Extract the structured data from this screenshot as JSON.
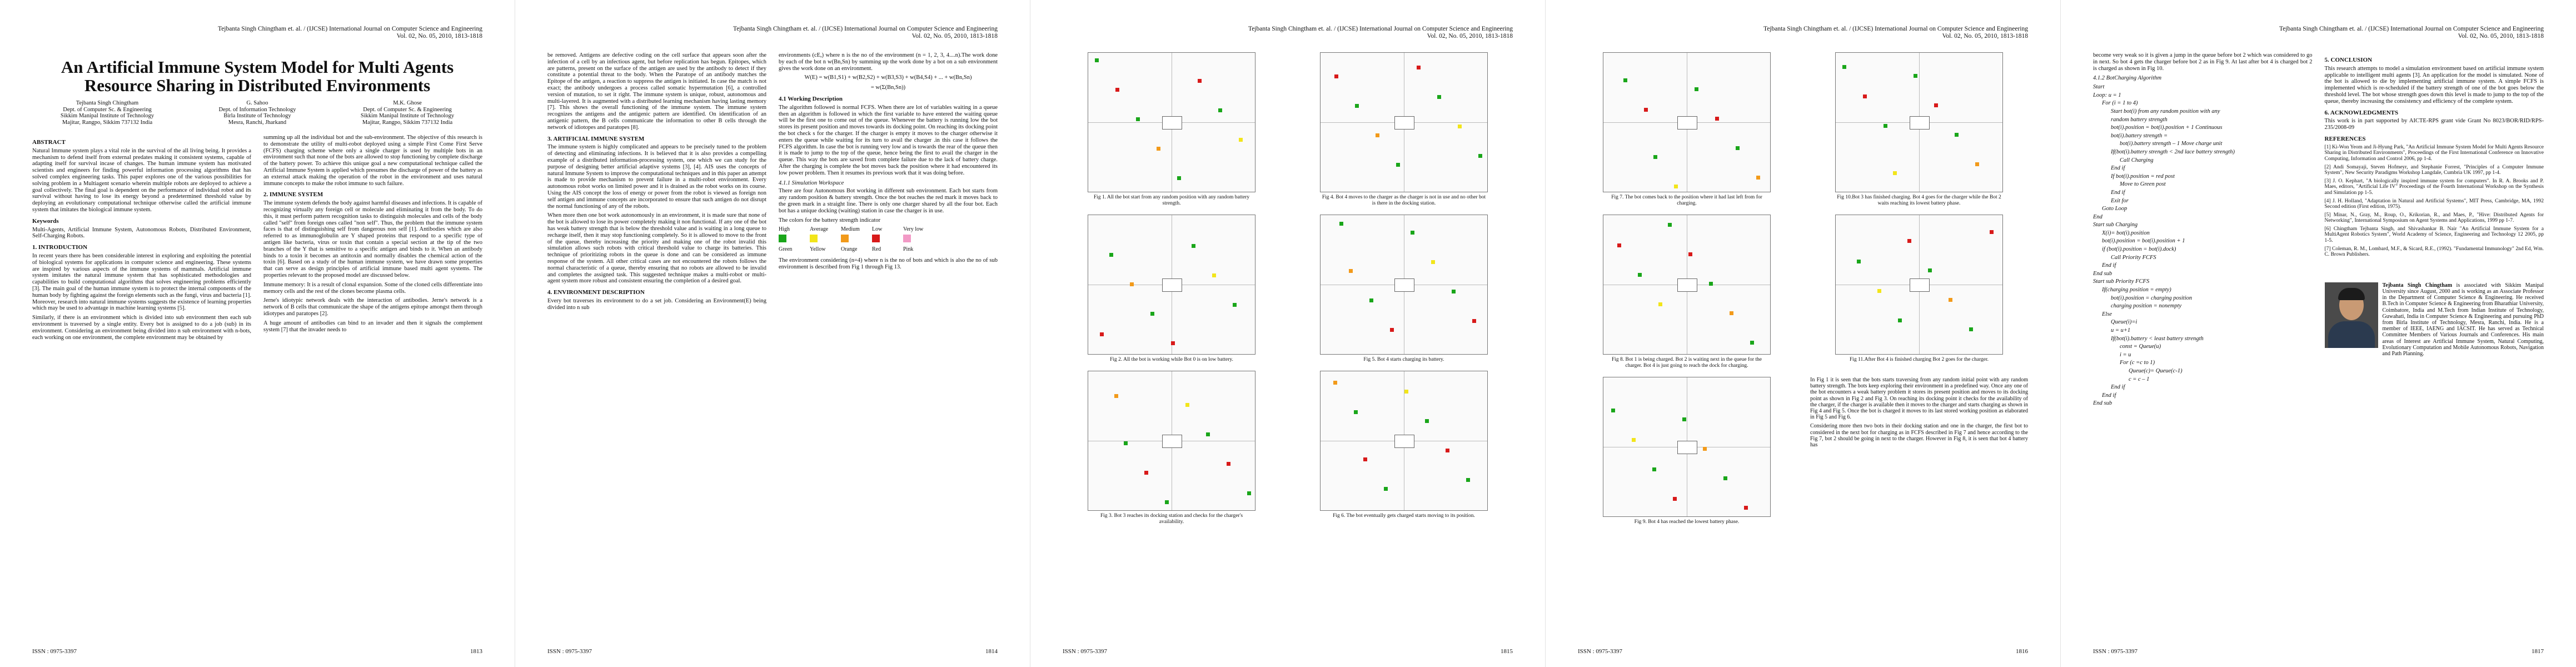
{
  "journal_header": "Tejbanta Singh Chingtham et. al. / (IJCSE) International Journal on Computer Science and Engineering",
  "volume_line": "Vol. 02, No. 05, 2010, 1813-1818",
  "issn": "ISSN : 0975-3397",
  "page_numbers": [
    "1813",
    "1814",
    "1815",
    "1816",
    "1817"
  ],
  "title": "An Artificial Immune System Model for Multi Agents Resource Sharing in Distributed Environments",
  "authors": [
    {
      "name": "Tejbanta Singh Chingtham",
      "dept": "Dept. of Computer Sc. & Engineering",
      "org": "Sikkim Manipal Institute of Technology",
      "place": "Majitar, Rangpo, Sikkim 737132 India"
    },
    {
      "name": "G. Sahoo",
      "dept": "Dept. of Information Technology",
      "org": "Birla Institute of Technology",
      "place": "Mesra, Ranchi, Jharkand"
    },
    {
      "name": "M.K. Ghose",
      "dept": "Dept. of Computer Sc. & Engineering",
      "org": "Sikkim Manipal Institute of Technology",
      "place": "Majitar, Rangpo, Sikkim 737132 India"
    }
  ],
  "p1": {
    "abstract_h": "ABSTRACT",
    "abstract": "Natural Immune system plays a vital role in the survival of the all living being. It provides a mechanism to defend itself from external predates making it consistent systems, capable of adapting itself for survival incase of changes. The human immune system has motivated scientists and engineers for finding powerful information processing algorithms that has solved complex engineering tasks. This paper explores one of the various possibilities for solving problem in a Multiagent scenario wherein multiple robots are deployed to achieve a goal collectively. The final goal is dependent on the performance of individual robot and its survival without having to lose its energy beyond a predetermined threshold value by deploying an evolutionary computational technique otherwise called the artificial immune system that imitates the biological immune system.",
    "keywords_h": "Keywords",
    "keywords": "Multi-Agents, Artificial Immune System, Autonomous Robots, Distributed Environment, Self-Charging Robots.",
    "intro_h": "1. INTRODUCTION",
    "intro_1": "In recent years there has been considerable interest in exploring and exploiting the potential of biological systems for applications in computer science and engineering. These systems are inspired by various aspects of the immune systems of mammals. Artificial immune system imitates the natural immune system that has sophisticated methodologies and capabilities to build computational algorithms that solves engineering problems efficiently [3]. The main goal of the human immune system is to protect the internal components of the human body by fighting against the foreign elements such as the fungi, virus and bacteria [1]. Moreover, research into natural immune systems suggests the existence of learning properties which may be used to advantage in machine learning systems [5].",
    "intro_2": "Similarly, if there is an environment which is divided into sub environment then each sub environment is traversed by a single entity. Every bot is assigned to do a job (sub) in its environment. Considering an environment being divided into n sub environment with n-bots, each working on one environment, the complete environment may be obtained by",
    "col2_1": "summing up all the individual bot and the sub-environment. The objective of this research is to demonstrate the utility of multi-robot deployed using a simple First Come First Serve (FCFS) charging scheme where only a single charger is used by multiple bots in an environment such that none of the bots are allowed to stop functioning by complete discharge of the battery power. To achieve this unique goal a new computational technique called the Artificial Immune System is applied which presumes the discharge of power of the battery as an external attack making the operation of the robot in the environment and uses natural immune concepts to make the robot immune to such failure.",
    "sec2_h": "2. IMMUNE SYSTEM",
    "sec2_1": "The immune system defends the body against harmful diseases and infections. It is capable of recognizing virtually any foreign cell or molecule and eliminating it from the body. To do this, it must perform pattern recognition tasks to distinguish molecules and cells of the body called \"self\" from foreign ones called \"non self\". Thus, the problem that the immune system faces is that of distinguishing self from dangerous non self [1]. Antibodies which are also referred to as immunoglobulin are Y shaped proteins that respond to a specific type of antigen like bacteria, virus or toxin that contain a special section at the tip of the two branches of the Y that is sensitive to a specific antigen and binds to it. When an antibody binds to a toxin it becomes an antitoxin and normally disables the chemical action of the toxin [6]. Based on a study of the human immune system, we have drawn some properties that can serve as design principles of artificial immune based multi agent systems. The properties relevant to the proposed model are discussed below.",
    "sec2_2": "Immune memory: It is a result of clonal expansion. Some of the cloned cells differentiate into memory cells and the rest of the clones become plasma cells.",
    "sec2_3": "Jerne's idiotypic network deals with the interaction of antibodies. Jerne's network is a network of B cells that communicate the shape of the antigens epitope amongst them through idiotypes and paratopes [2].",
    "sec2_4": "A huge amount of antibodies can bind to an invader and then it signals the complement system [7] that the invader needs to"
  },
  "p2": {
    "c1_1": "be removed. Antigens are defective coding on the cell surface that appears soon after the infection of a cell by an infectious agent, but before replication has begun. Epitopes, which are patterns, present on the surface of the antigen are used by the antibody to detect if they constitute a potential threat to the body. When the Paratope of an antibody matches the Epitope of the antigen, a reaction to suppress the antigen is initiated. In case the match is not exact; the antibody undergoes a process called somatic hypermutation [6], a controlled version of mutation, to set it right. The immune system is unique, robust, autonomous and multi-layered. It is augmented with a distributed learning mechanism having lasting memory [7]. This shows the overall functioning of the immune system. The immune system recognizes the antigens and the antigenic pattern are identified. On identification of an antigenic pattern, the B cells communicate the information to other B cells through the network of idiotopes and paratopes [8].",
    "sec3_h": "3. ARTIFICIAL IMMUNE SYSTEM",
    "sec3_1": "The immune system is highly complicated and appears to be precisely tuned to the problem of detecting and eliminating infections. It is believed that it is also provides a compelling example of a distributed information-processing system, one which we can study for the purpose of designing better artificial adaptive systems [3], [4]. AIS uses the concepts of natural Immune System to improve the computational techniques and in this paper an attempt is made to provide mechanism to prevent failure in a multi-robot environment. Every autonomous robot works on limited power and it is drained as the robot works on its course. Using the AIS concept the loss of energy or power from the robot is viewed as foreign non self antigen and immune concepts are incorporated to ensure that such antigen do not disrupt the normal functioning of any of the robots.",
    "sec3_2": "When more then one bot work autonomously in an environment, it is made sure that none of the bot is allowed to lose its power completely making it non functional. If any one of the bot has weak battery strength that is below the threshold value and is waiting in a long queue to recharge itself, then it may stop functioning completely. So it is allowed to move to the front of the queue, thereby increasing the priority and making one of the robot invalid this simulation allows such robots with critical threshold value to charge its batteries. This technique of prioritizing robots in the queue is done and can be considered as immune response of the system. All other critical cases are not encountered the robots follows the normal characteristic of a queue, thereby ensuring that no robots are allowed to be invalid and completes the assigned task. This suggested technique makes a multi-robot or multi-agent system more robust and consistent ensuring the completion of a desired goal.",
    "sec4_h": "4. ENVIRONMENT DESCRIPTION",
    "sec4_1": "Every bot traverses its environment to do a set job. Considering an Environment(E) being divided into n sub",
    "c2_1": "environments (cE,) where n is the no of the environment (n = 1, 2, 3, 4....n).The work done by each of the bot n w(Bn,Sn) by summing up the work done by a bot on a sub environment gives the work done on an environment.",
    "eq1": "W(E) = w(B1,S1) + w(B2,S2) + w(B3,S3) + w(B4,S4) + ... + w(Bn,Sn)",
    "eq2": "= w(Σ(Bn,Sn))",
    "sec41_h": "4.1 Working Description",
    "sec41_1": "The algorithm followed is normal FCFS. When there are lot of variables waiting in a queue then an algorithm is followed in which the first variable to have entered the waiting queue will be the first one to come out of the queue. Whenever the battery is running low the bot stores its present position and moves towards its docking point. On reaching its docking point the bot check s for the charger. If the charger is empty it moves to the charger otherwise it enters the queue while waiting for its turn to avail the charger .in this case it follows the FCFS algorithm. In case the bot is running very low and is towards the rear of the queue then it is made to jump to the top of the queue, hence being the first to avail the charger in the queue. This way the bots are saved from complete failure due to the lack of battery charge. After the charging is complete the bot moves back the position where it had encountered its low power problem. Then it resumes its previous work that it was doing before.",
    "sec411_h": "4.1.1  Simulation Workspace",
    "sec411_1": "There are four Autonomous Bot working in different sub environment. Each bot starts from any random position & battery strength. Once the bot reaches the red mark it moves back to the green mark in a straight line. There is only one charger shared by all the four bot. Each bot has a unique docking (waiting) station in case the charger is in use.",
    "legend_intro": "The colors for the battery strength indicator",
    "legend": [
      {
        "label": "High",
        "color": "#1aa61a",
        "name": "Green"
      },
      {
        "label": "Average",
        "color": "#f2e51a",
        "name": "Yellow"
      },
      {
        "label": "Medium",
        "color": "#f29a1a",
        "name": "Orange"
      },
      {
        "label": "Low",
        "color": "#d81a1a",
        "name": "Red"
      },
      {
        "label": "Very low",
        "color": "#f29ac6",
        "name": "Pink"
      }
    ],
    "c2_2": "The environment considering (n=4) where n is the no of bots and which is also the no of sub environment is described from Fig 1 through Fig 13."
  },
  "p3": {
    "captions": [
      "Fig 1. All the bot start from any random position with any random battery strength.",
      "Fig 4. Bot 4 moves to the charger as the charger is not in use and no other bot is there in the docking station.",
      "Fig 2. All the bot is working while Bot 0 is on low battery.",
      "Fig 5. Bot 4 starts charging its battery.",
      "Fig 3. Bot 3 reaches its docking station and checks for the charger's availability.",
      "Fig 6. The bot eventually gets charged starts moving to its position."
    ]
  },
  "p4": {
    "captions": [
      "Fig 7. The bot comes back to the position where it had last left from for charging.",
      "Fig 10.Bot 3 has finished charging. Bot 4 goes for the charger while the Bot 2 waits reaching its lowest battery phase.",
      "Fig 8. Bot 1 is being charged. Bot 2 is waiting next in the queue for the charger. Bot 4 is just going to reach the dock for charging.",
      "Fig 11.After Bot 4 is finished charging Bot 2 goes for the charger.",
      "Fig 9. Bot 4 has reached the lowest battery phase."
    ],
    "c_1": "In Fig 1 it is seen that the bots starts traversing from any random initial point with any random battery strength. The bots keep exploring their environment in a predefined way. Once any one of the bot encounters a weak battery problem it stores its present position and moves to its docking point as shown in Fig 2 and Fig 3. On reaching its docking point it checks for the availability of the charger, if the charger is available then it moves to the charger and starts charging as shown in Fig 4 and Fig 5. Once the bot is charged it moves to its last stored working position as elaborated in Fig 5 and Fig 6.",
    "c_2": "Considering more then two bots in their docking station and one in the charger, the first bot to considered in the next bot for charging as in FCFS described in Fig 7 and hence according to the Fig 7, bot 2 should be going in next to the charger. However in Fig 8, it is seen that bot 4 battery has"
  },
  "p5": {
    "c1_1": "become very weak so it is given a jump in the queue before bot 2 which was considered to go in next. So bot 4 gets the charger before bot 2 as in Fig 9. At last after bot 4 is charged bot 2 is charged as shown in Fig 10.",
    "algo_h": "4.1.2  BotCharging Algorithm",
    "algo": [
      "Start",
      "Loop: u = 1",
      "For (i = 1 to 4)",
      "Start bot(i) from any random position with any",
      "random battery strength",
      "bot(i).position = bot(i).position + 1 Continuous",
      "bot(i).battery strength =",
      "bot(i).battery strength – 1 Move charge unit",
      "If(bot(i).battery strength < 2nd lace battery strength)",
      "Call Charging",
      "End if",
      "If bot(i).position = red post",
      "Move to Green post",
      "End if",
      "Exit for",
      "Goto Loop",
      "End",
      "Start sub Charging",
      "X(i)= bot(i).position",
      "bot(i).position = bot(i).position + 1",
      "if (bot(i).position = bot(i).dock)",
      "Call Priority FCFS",
      "End if",
      "End sub",
      "Start sub Priority FCFS",
      "If(charging position = empty)",
      "bot(i).position = charging position",
      "charging position = nonempty",
      "Else",
      "Queue(i)=i",
      "u = u+1",
      "If(bot(i).battery < least battery strength",
      "const = Queue(u)",
      "i = u",
      "For (c =c to 1)",
      "Queue(c)= Queue(c-1)",
      "c = c – 1",
      "End if",
      "End if",
      "End sub"
    ],
    "sec5_h": "5. CONCLUSION",
    "sec5_1": "This research attempts to model a simulation environment based on artificial immune system applicable to intelligent multi agents [3]. An application for the model is simulated. None of the bot is allowed to die by implementing artificial immune system. A simple FCFS is implemented which is re-scheduled if the battery strength of one of the bot goes below the threshold level. The bot whose strength goes down this level is made to jump to the top of the queue, thereby increasing the consistency and efficiency of the complete system.",
    "sec6_h": "6. ACKNOWLEDGMENTS",
    "sec6_1": "This work is in part supported by AICTE-RPS grant vide Grant No 8023/BOR/RID/RPS-235/2008-09",
    "refs_h": "REFERENCES",
    "refs": [
      "[1] Ki-Won Yeom and Ji-Hyung Park, \"An Artificial Immune System Model for Multi Agents Resource Sharing in Distributed Environments\", Proceedings of the First International Conference on Innovative Computing, Information and Control 2006, pp 1-4.",
      "[2] Andi Somayaji, Steven Hofmeyr, and Stephanie Forrest, \"Principles of a Computer Immune System\", New Security Paradigms Workshop Langdale, Cumbria UK 1997, pp 1-4.",
      "[3] J. O. Kephart, \"A biologically inspired immune system for computers\". In R. A. Brooks and P. Maes, editors, \"Artificial Life IV\" Proceedings of the Fourth International Workshop on the Synthesis and Simulation pp 1-5.",
      "[4] J. H. Holland, \"Adaptation in Natural and Artificial Systems\", MIT Press, Cambridge, MA, 1992 Second edition (First edition, 1975).",
      "[5] Minar, N., Gray, M., Roup, O., Krikorian, R., and Maes, P., \"Hive: Distributed Agents for Networking\", International Symposium on Agent Systems and Applications, 1999 pp 1-7.",
      "[6] Chingtham Tejbanta Singh, and Shivashankar B. Nair \"An Artificial Immune System for a MultiAgent Robotics System\", World Academy of Science, Engineering and Technology 12 2005, pp 1-5.",
      "[7] Coleman, R. M., Lombard, M.F., & Sicard, R.E., (1992). \"Fundamental Immunology\" 2nd Ed, Wm. C. Brown Publishers."
    ],
    "bio_name": "Tejbanta Singh Chingtham",
    "bio_1": "is associated with Sikkim Manipal University since August, 2000 and is working as an Associate Professor in the Department of Computer Science & Engineering. He received B.Tech in Computer Science & Engineering from Bharathiar University, Coimbatore, India and M.Tech from Indian Institute of Technology, Guwahati, India in Computer Science & Engineering and pursuing PhD from Birla Institute of Technology, Mesra, Ranchi, India. He is a member of IEEE, IAENG and IACSIT. He has served as Technical Committee Members of Various Journals and Conferences. His main areas of Interest are Artificial Immune System, Natural Computing, Evolutionary Computation and Mobile Autonomous Robots, Navigation and Path Planning."
  }
}
